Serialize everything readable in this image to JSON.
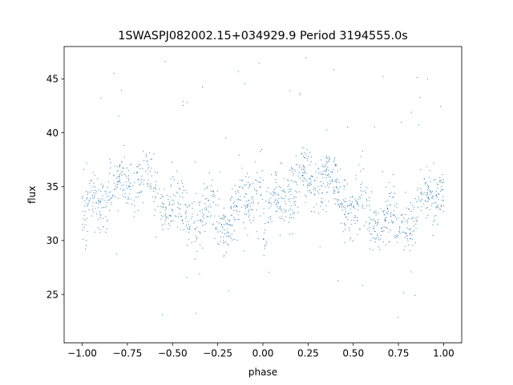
{
  "chart_data": {
    "type": "scatter",
    "title": "1SWASPJ082002.15+034929.9 Period 3194555.0s",
    "xlabel": "phase",
    "ylabel": "flux",
    "xlim": [
      -1.1,
      1.1
    ],
    "ylim": [
      20.5,
      48.0
    ],
    "x_ticks": [
      -1.0,
      -0.75,
      -0.5,
      -0.25,
      0.0,
      0.25,
      0.5,
      0.75,
      1.0
    ],
    "x_tick_labels": [
      "−1.00",
      "−0.75",
      "−0.50",
      "−0.25",
      "0.00",
      "0.25",
      "0.50",
      "0.75",
      "1.00"
    ],
    "y_ticks": [
      25,
      30,
      35,
      40,
      45
    ],
    "y_tick_labels": [
      "25",
      "30",
      "35",
      "40",
      "45"
    ],
    "grid": false,
    "point_color": "#1f77b4",
    "phase_folded": true,
    "series": [
      {
        "profile_x": [
          0.0,
          0.03,
          0.06,
          0.1,
          0.15,
          0.2,
          0.25,
          0.3,
          0.35,
          0.4,
          0.45,
          0.5,
          0.55,
          0.6,
          0.65,
          0.7,
          0.75,
          0.8,
          0.85,
          0.9,
          0.95,
          1.0
        ],
        "profile_y": [
          30.5,
          32.0,
          33.5,
          34.0,
          34.5,
          35.0,
          35.5,
          36.0,
          35.5,
          34.5,
          34.0,
          33.0,
          32.5,
          32.5,
          32.0,
          32.0,
          31.5,
          32.0,
          32.5,
          33.5,
          34.5,
          35.5
        ],
        "spread": 3.0,
        "outlier_range": [
          21.5,
          47.5
        ]
      }
    ]
  }
}
